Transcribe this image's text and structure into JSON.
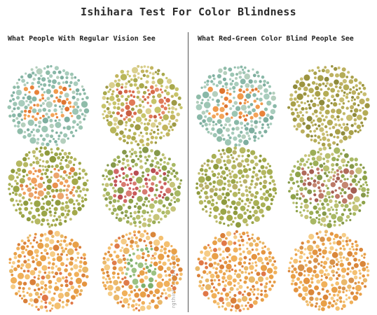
{
  "title": "Ishihara Test For Color Blindness",
  "left_heading": "What People With Regular Vision See",
  "right_heading": "What Red-Green Color Blind People See",
  "credit": "rgthinkcreative.com",
  "plates": [
    {
      "id": "L1",
      "numeral": "25",
      "bg": [
        "#89b8a8",
        "#9dc6b4",
        "#7eae9f",
        "#a9cdbd",
        "#8fbca9",
        "#b4cfbd"
      ],
      "fg": [
        "#e8823a",
        "#f09a4c",
        "#de7530",
        "#f2a45a"
      ]
    },
    {
      "id": "L2",
      "numeral": "29",
      "bg": [
        "#b8b65a",
        "#a8a84c",
        "#c7c46a",
        "#d2c880",
        "#9e9a46",
        "#c2b55e",
        "#dad08e"
      ],
      "fg": [
        "#d86a4a",
        "#e07a58",
        "#c95f44",
        "#e48c6a"
      ]
    },
    {
      "id": "L3",
      "numeral": "45",
      "bg": [
        "#9aa548",
        "#a8b055",
        "#8e9a3e",
        "#b5b862",
        "#a4a94a",
        "#c0bd70"
      ],
      "fg": [
        "#e8904e",
        "#f0a05c",
        "#de8444",
        "#eba56c"
      ]
    },
    {
      "id": "L4",
      "numeral": "56",
      "bg": [
        "#8ea24a",
        "#9cae58",
        "#a8b864",
        "#b9c070",
        "#c6c47a",
        "#85984a"
      ],
      "fg": [
        "#c95a5a",
        "#d06866",
        "#b84e52",
        "#d87a70"
      ]
    },
    {
      "id": "L5",
      "numeral": "",
      "bg": [
        "#e8a048",
        "#f0b05a",
        "#e49440",
        "#f4c070",
        "#d9803a",
        "#e8b868",
        "#f6cc86",
        "#e07848"
      ],
      "fg": [
        "#c7c870",
        "#b8bf64",
        "#d2d07e"
      ]
    },
    {
      "id": "L6",
      "numeral": "6",
      "bg": [
        "#e8a048",
        "#f0b05a",
        "#e49440",
        "#f4c070",
        "#d9863a",
        "#eab86a",
        "#f5cc86",
        "#df7c4a"
      ],
      "fg": [
        "#8ab876",
        "#9cc282",
        "#7fae6a",
        "#a6c88e"
      ]
    },
    {
      "id": "R1",
      "numeral": "25",
      "bg": [
        "#89b8a8",
        "#9dc6b4",
        "#7eae9f",
        "#a9cdbd",
        "#8fbca9",
        "#b4cfbd"
      ],
      "fg": [
        "#e8823a",
        "#f09a4c",
        "#de7530",
        "#f2a45a"
      ]
    },
    {
      "id": "R2",
      "numeral": "",
      "bg": [
        "#a8a04a",
        "#b4ac56",
        "#9c9440",
        "#c2b866",
        "#8e8a3c",
        "#bcb060",
        "#c8be72"
      ],
      "fg": []
    },
    {
      "id": "R3",
      "numeral": "",
      "bg": [
        "#9aa548",
        "#a8b055",
        "#8e9a3e",
        "#b5b862",
        "#a4a94a",
        "#c0bd70",
        "#b8b068"
      ],
      "fg": []
    },
    {
      "id": "R4",
      "numeral": "56",
      "bg": [
        "#8ea24a",
        "#9cae58",
        "#a8b864",
        "#b9c070",
        "#c6c47a",
        "#85984a"
      ],
      "fg": [
        "#b06a5a",
        "#bc7866",
        "#a45e52",
        "#c48670"
      ]
    },
    {
      "id": "R5",
      "numeral": "",
      "bg": [
        "#e8a048",
        "#f0b05a",
        "#e49440",
        "#f4c070",
        "#d9803a",
        "#e8b868",
        "#f6cc86",
        "#e07848"
      ],
      "fg": []
    },
    {
      "id": "R6",
      "numeral": "",
      "bg": [
        "#e8a048",
        "#f0b05a",
        "#e49440",
        "#f4c070",
        "#d9863a",
        "#eab86a",
        "#f5cc86",
        "#d8924a"
      ],
      "fg": []
    }
  ]
}
